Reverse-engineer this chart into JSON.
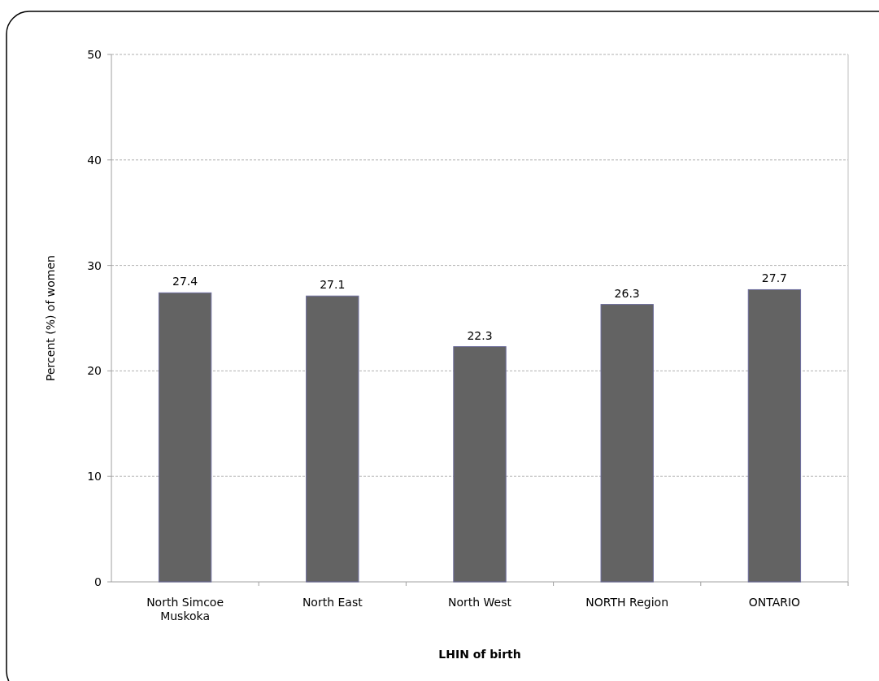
{
  "chart_data": {
    "type": "bar",
    "xlabel": "LHIN of birth",
    "ylabel": "Percent (%) of women",
    "categories": [
      "North Simcoe Muskoka",
      "North East",
      "North West",
      "NORTH Region",
      "ONTARIO"
    ],
    "values": [
      27.4,
      27.1,
      22.3,
      26.3,
      27.7
    ],
    "color": "#636363",
    "ylim": [
      0,
      50
    ],
    "yticks": [
      0,
      10,
      20,
      30,
      40,
      50
    ],
    "grid": "y",
    "data_labels": true
  }
}
